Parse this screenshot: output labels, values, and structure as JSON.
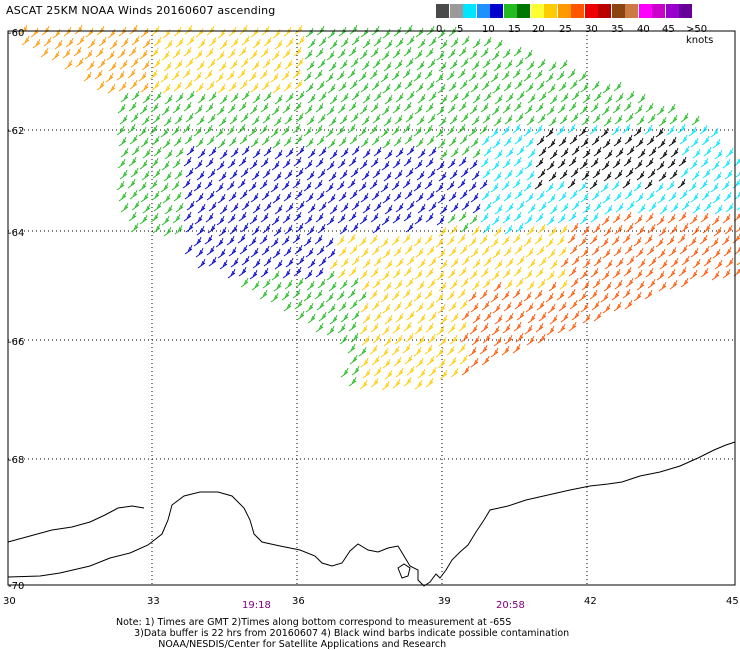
{
  "title": "ASCAT 25KM NOAA Winds 20160607 ascending",
  "colorbar": {
    "labels": [
      "0",
      "5",
      "10",
      "15",
      "20",
      "25",
      "30",
      "35",
      "40",
      "45",
      ">50 knots"
    ],
    "colors": [
      "#4a4a4a",
      "#9a9a9a",
      "#00e5ff",
      "#1e90ff",
      "#0000cc",
      "#22bb22",
      "#007700",
      "#ffff33",
      "#ffcc00",
      "#ff9900",
      "#ff5500",
      "#ee0000",
      "#bb0000",
      "#8b4513",
      "#cc7a44",
      "#ff00ff",
      "#cc00cc",
      "#9900cc",
      "#660099"
    ]
  },
  "axes": {
    "lat_ticks": [
      "-60",
      "-62",
      "-64",
      "-66",
      "-68",
      "-70"
    ],
    "lon_ticks": [
      "30",
      "33",
      "36",
      "39",
      "42",
      "45"
    ],
    "time_labels": [
      "19:18",
      "20:58"
    ]
  },
  "notes": [
    "Note: 1) Times are GMT 2)Times along bottom correspond to measurement at -65S",
    "      3)Data buffer is 22 hrs from 20160607 4) Black wind barbs indicate possible contamination",
    "              NOAA/NESDIS/Center for Satellite Applications and Research"
  ],
  "wind_regions": [
    {
      "name": "northwest-swath",
      "color": "#ff9900"
    },
    {
      "name": "north-yellow",
      "color": "#ffcc00"
    },
    {
      "name": "central-green",
      "color": "#22bb22"
    },
    {
      "name": "central-blue",
      "color": "#0000cc"
    },
    {
      "name": "east-cyan",
      "color": "#00e5ff"
    },
    {
      "name": "south-yellow",
      "color": "#ffcc00"
    },
    {
      "name": "southeast-orange",
      "color": "#ff5500"
    },
    {
      "name": "contaminated",
      "color": "#000000"
    }
  ]
}
